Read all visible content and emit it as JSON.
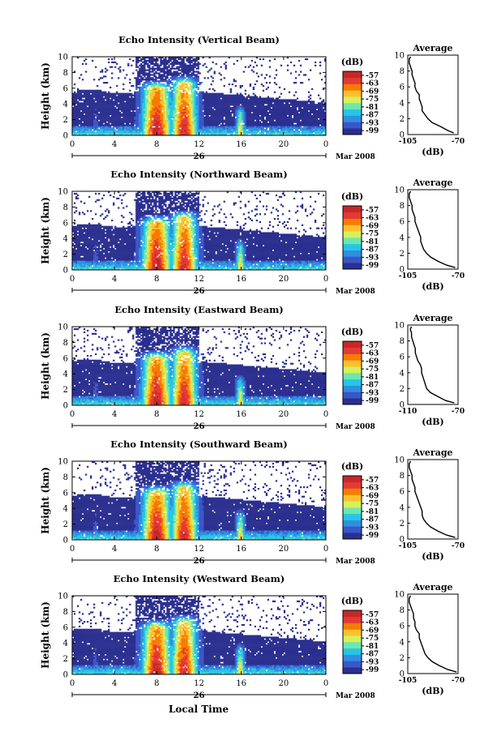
{
  "figure": {
    "bottom_axis_label": "Local Time",
    "colorbar_unit": "(dB)",
    "colorbar_ticks": [
      "-57",
      "-63",
      "-69",
      "-75",
      "-81",
      "-87",
      "-93",
      "-99"
    ],
    "colorbar_range_db": [
      -102,
      -54
    ],
    "colormap": [
      "#2b2f8f",
      "#3a56c8",
      "#2f8fe0",
      "#26c6e6",
      "#6fe6b0",
      "#d6f05a",
      "#fbc02d",
      "#f57c00",
      "#e53935",
      "#c62828"
    ],
    "grid": false
  },
  "chart_data": [
    {
      "type": "heatmap",
      "title": "Echo Intensity (Vertical Beam)",
      "xlabel": "",
      "ylabel": "Height (km)",
      "x_ticks": [
        "0",
        "4",
        "8",
        "12",
        "16",
        "20",
        "0"
      ],
      "x_range_hours": [
        0,
        24
      ],
      "y_ticks": [
        "0",
        "2",
        "4",
        "6",
        "8",
        "10"
      ],
      "y_range_km": [
        0,
        10
      ],
      "date_day": "26",
      "date_label": "Mar 2008",
      "avg_profile": {
        "title": "Average",
        "xlabel": "(dB)",
        "x_ticks": [
          "-105",
          "-70"
        ],
        "x_range": [
          -105,
          -70
        ],
        "y_ticks": [
          "0",
          "2",
          "4",
          "6",
          "8",
          "10"
        ],
        "height_km": [
          0.2,
          0.5,
          1.0,
          1.5,
          2.0,
          2.5,
          3.0,
          3.5,
          4.0,
          4.5,
          5.0,
          5.5,
          6.0,
          6.5,
          7.0,
          7.5,
          8.0,
          8.5,
          9.0,
          9.5,
          9.8
        ],
        "power_db": [
          -73,
          -77,
          -82,
          -88,
          -91,
          -93,
          -95,
          -95,
          -96,
          -97,
          -97,
          -99,
          -100,
          -100,
          -101,
          -102,
          -102,
          -103,
          -104,
          -104,
          -103
        ]
      }
    },
    {
      "type": "heatmap",
      "title": "Echo Intensity (Northward Beam)",
      "xlabel": "",
      "ylabel": "Height (km)",
      "x_ticks": [
        "0",
        "4",
        "8",
        "12",
        "16",
        "20",
        "0"
      ],
      "x_range_hours": [
        0,
        24
      ],
      "y_ticks": [
        "0",
        "2",
        "4",
        "6",
        "8",
        "10"
      ],
      "y_range_km": [
        0,
        10
      ],
      "date_day": "26",
      "date_label": "Mar 2008",
      "avg_profile": {
        "title": "Average",
        "xlabel": "(dB)",
        "x_ticks": [
          "-105",
          "-70"
        ],
        "x_range": [
          -105,
          -70
        ],
        "y_ticks": [
          "0",
          "2",
          "4",
          "6",
          "8",
          "10"
        ],
        "height_km": [
          0.2,
          0.5,
          1.0,
          1.5,
          2.0,
          2.5,
          3.0,
          3.5,
          4.0,
          4.5,
          5.0,
          5.5,
          6.0,
          6.5,
          7.0,
          7.5,
          8.0,
          8.5,
          9.0,
          9.5,
          9.8
        ],
        "power_db": [
          -72,
          -78,
          -84,
          -89,
          -92,
          -94,
          -95,
          -96,
          -96,
          -97,
          -98,
          -99,
          -100,
          -100,
          -101,
          -102,
          -102,
          -103,
          -104,
          -104,
          -103
        ]
      }
    },
    {
      "type": "heatmap",
      "title": "Echo Intensity (Eastward Beam)",
      "xlabel": "",
      "ylabel": "Height (km)",
      "x_ticks": [
        "0",
        "4",
        "8",
        "12",
        "16",
        "20",
        "0"
      ],
      "x_range_hours": [
        0,
        24
      ],
      "y_ticks": [
        "0",
        "2",
        "4",
        "6",
        "8",
        "10"
      ],
      "y_range_km": [
        0,
        10
      ],
      "date_day": "26",
      "date_label": "Mar 2008",
      "avg_profile": {
        "title": "Average",
        "xlabel": "(dB)",
        "x_ticks": [
          "-110",
          "-70"
        ],
        "x_range": [
          -110,
          -70
        ],
        "y_ticks": [
          "0",
          "2",
          "4",
          "6",
          "8",
          "10"
        ],
        "height_km": [
          0.2,
          0.5,
          1.0,
          1.5,
          2.0,
          2.5,
          3.0,
          3.5,
          4.0,
          4.5,
          5.0,
          5.5,
          6.0,
          6.5,
          7.0,
          7.5,
          8.0,
          8.5,
          9.0,
          9.5,
          9.8
        ],
        "power_db": [
          -73,
          -80,
          -86,
          -92,
          -95,
          -96,
          -97,
          -98,
          -99,
          -99,
          -100,
          -102,
          -103,
          -104,
          -104,
          -105,
          -106,
          -107,
          -107,
          -108,
          -107
        ]
      }
    },
    {
      "type": "heatmap",
      "title": "Echo Intensity (Southward Beam)",
      "xlabel": "",
      "ylabel": "Height (km)",
      "x_ticks": [
        "0",
        "4",
        "8",
        "12",
        "16",
        "20",
        "0"
      ],
      "x_range_hours": [
        0,
        24
      ],
      "y_ticks": [
        "0",
        "2",
        "4",
        "6",
        "8",
        "10"
      ],
      "y_range_km": [
        0,
        10
      ],
      "date_day": "26",
      "date_label": "Mar 2008",
      "avg_profile": {
        "title": "Average",
        "xlabel": "(dB)",
        "x_ticks": [
          "-105",
          "-70"
        ],
        "x_range": [
          -105,
          -70
        ],
        "y_ticks": [
          "0",
          "2",
          "4",
          "6",
          "8",
          "10"
        ],
        "height_km": [
          0.2,
          0.5,
          1.0,
          1.5,
          2.0,
          2.5,
          3.0,
          3.5,
          4.0,
          4.5,
          5.0,
          5.5,
          6.0,
          6.5,
          7.0,
          7.5,
          8.0,
          8.5,
          9.0,
          9.5,
          9.8
        ],
        "power_db": [
          -72,
          -78,
          -84,
          -89,
          -92,
          -94,
          -95,
          -95,
          -96,
          -97,
          -98,
          -99,
          -100,
          -100,
          -101,
          -102,
          -102,
          -103,
          -104,
          -104,
          -103
        ]
      }
    },
    {
      "type": "heatmap",
      "title": "Echo Intensity (Westward Beam)",
      "xlabel": "",
      "ylabel": "Height (km)",
      "x_ticks": [
        "0",
        "4",
        "8",
        "12",
        "16",
        "20",
        "0"
      ],
      "x_range_hours": [
        0,
        24
      ],
      "y_ticks": [
        "0",
        "2",
        "4",
        "6",
        "8",
        "10"
      ],
      "y_range_km": [
        0,
        10
      ],
      "date_day": "26",
      "date_label": "Mar 2008",
      "avg_profile": {
        "title": "Average",
        "xlabel": "(dB)",
        "x_ticks": [
          "-105",
          "-70"
        ],
        "x_range": [
          -105,
          -70
        ],
        "y_ticks": [
          "0",
          "2",
          "4",
          "6",
          "8",
          "10"
        ],
        "height_km": [
          0.2,
          0.5,
          1.0,
          1.5,
          2.0,
          2.5,
          3.0,
          3.5,
          4.0,
          4.5,
          5.0,
          5.5,
          6.0,
          6.5,
          7.0,
          7.5,
          8.0,
          8.5,
          9.0,
          9.5,
          9.8
        ],
        "power_db": [
          -71,
          -77,
          -83,
          -88,
          -91,
          -93,
          -94,
          -95,
          -96,
          -97,
          -97,
          -99,
          -100,
          -100,
          -101,
          -101,
          -102,
          -103,
          -104,
          -104,
          -103
        ]
      }
    }
  ]
}
